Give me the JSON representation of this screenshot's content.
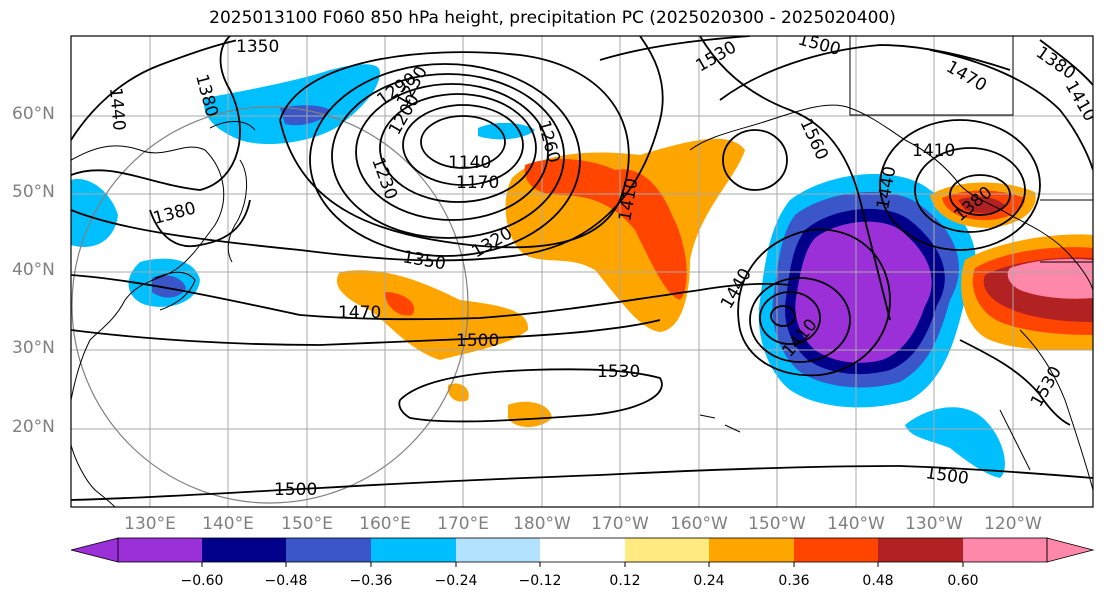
{
  "title": "2025013100 F060 850 hPa height, precipitation PC (2025020300 - 2025020400)",
  "lat_labels": [
    "60°N",
    "50°N",
    "40°N",
    "30°N",
    "20°N"
  ],
  "lon_labels": [
    "130°E",
    "140°E",
    "150°E",
    "160°E",
    "170°E",
    "180°W",
    "170°W",
    "160°W",
    "150°W",
    "140°W",
    "130°W",
    "120°W"
  ],
  "contour_labels": [
    "1350",
    "1380",
    "1440",
    "1290",
    "1230",
    "1260",
    "1200",
    "1140",
    "1170",
    "1380",
    "1230",
    "1350",
    "1320",
    "1410",
    "1470",
    "1500",
    "1530",
    "1500",
    "1530",
    "1500",
    "1560",
    "1440",
    "1410",
    "1410",
    "1440",
    "1470",
    "1380",
    "1410",
    "1380",
    "1530",
    "1500"
  ],
  "colorbar": {
    "tick_labels": [
      "−0.60",
      "−0.48",
      "−0.36",
      "−0.24",
      "−0.12",
      "0.12",
      "0.24",
      "0.36",
      "0.48",
      "0.60"
    ],
    "colors": [
      "#9b30d9",
      "#00008b",
      "#3a56c8",
      "#00bfff",
      "#b3e2ff",
      "#ffffff",
      "#ffeb80",
      "#ffa500",
      "#ff4500",
      "#b22222",
      "#ff88aa"
    ]
  },
  "fill_colors": {
    "neg_strong": "#9b30d9",
    "neg_navy": "#00008b",
    "neg_blue": "#3a56c8",
    "neg_sky": "#00bfff",
    "neg_light": "#b3e2ff",
    "pos_light": "#ffeb80",
    "pos_orange": "#ffa500",
    "pos_red": "#ff4500",
    "pos_dark": "#b22222",
    "pos_pink": "#ff88aa"
  }
}
